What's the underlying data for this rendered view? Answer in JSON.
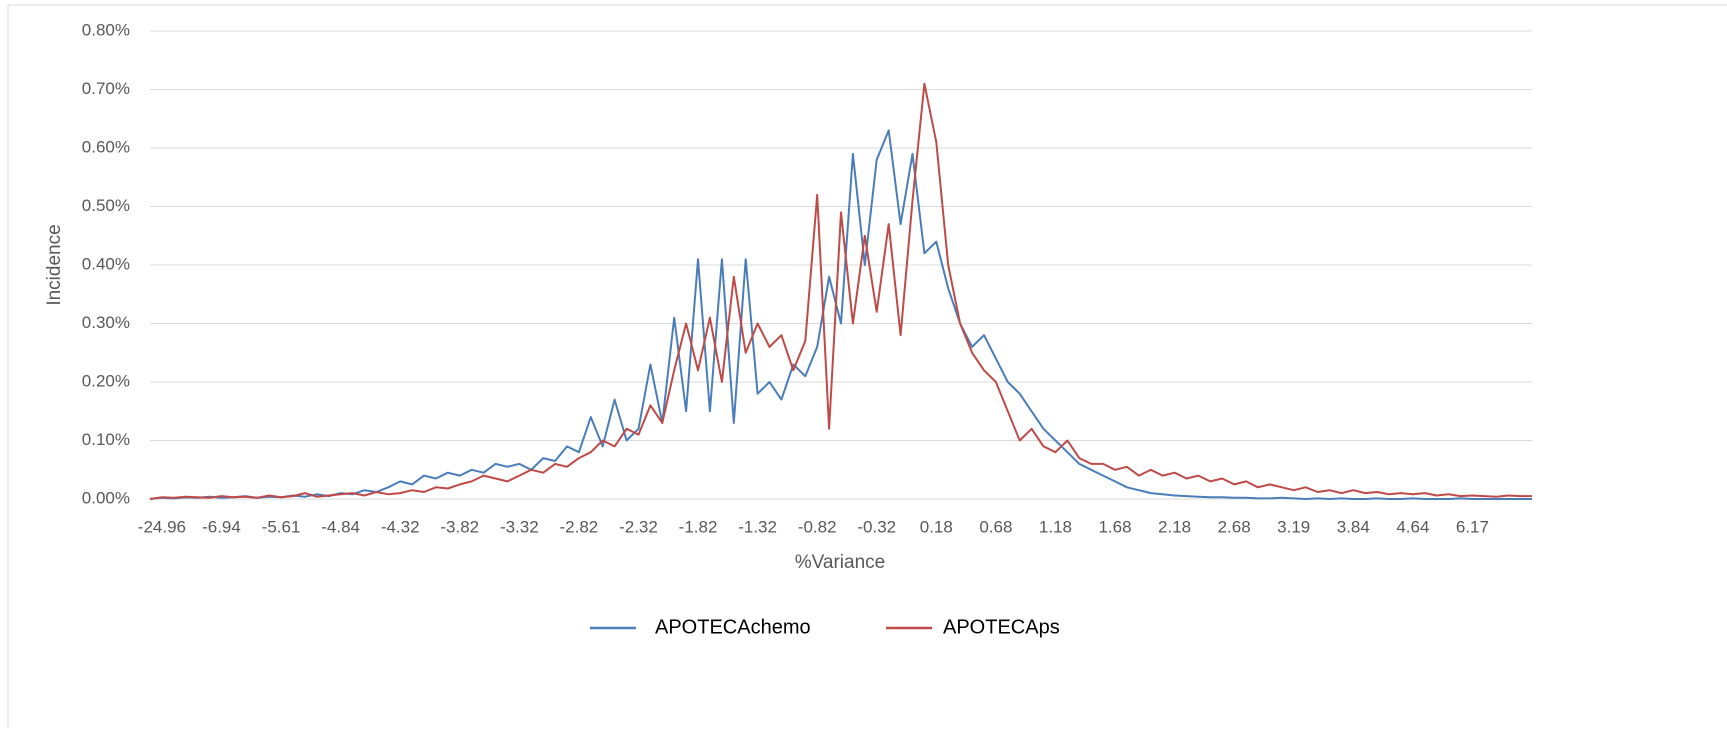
{
  "chart_data": {
    "type": "line",
    "y_axis_label": "Incidence",
    "x_axis_label": "%Variance",
    "categories": [
      null,
      "-24.96",
      null,
      null,
      null,
      null,
      "-6.94",
      null,
      null,
      null,
      null,
      "-5.61",
      null,
      null,
      null,
      null,
      "-4.84",
      null,
      null,
      null,
      null,
      "-4.32",
      null,
      null,
      null,
      null,
      "-3.82",
      null,
      null,
      null,
      null,
      "-3.32",
      null,
      null,
      null,
      null,
      "-2.82",
      null,
      null,
      null,
      null,
      "-2.32",
      null,
      null,
      null,
      null,
      "-1.82",
      null,
      null,
      null,
      null,
      "-1.32",
      null,
      null,
      null,
      null,
      "-0.82",
      null,
      null,
      null,
      null,
      "-0.32",
      null,
      null,
      null,
      null,
      "0.18",
      null,
      null,
      null,
      null,
      "0.68",
      null,
      null,
      null,
      null,
      "1.18",
      null,
      null,
      null,
      null,
      "1.68",
      null,
      null,
      null,
      null,
      "2.18",
      null,
      null,
      null,
      null,
      "2.68",
      null,
      null,
      null,
      null,
      "3.19",
      null,
      null,
      null,
      null,
      "3.84",
      null,
      null,
      null,
      null,
      "4.64",
      null,
      null,
      null,
      null,
      "6.17",
      null,
      null,
      null,
      null,
      null
    ],
    "series": [
      {
        "name": "APOTECAchemo",
        "color": "#4a7ebb",
        "values": [
          0,
          0.002,
          0.001,
          0.003,
          0.002,
          0.004,
          0.002,
          0.003,
          0.005,
          0.002,
          0.004,
          0.003,
          0.006,
          0.004,
          0.008,
          0.005,
          0.01,
          0.008,
          0.015,
          0.012,
          0.02,
          0.03,
          0.025,
          0.04,
          0.035,
          0.045,
          0.04,
          0.05,
          0.045,
          0.06,
          0.055,
          0.06,
          0.05,
          0.07,
          0.065,
          0.09,
          0.08,
          0.14,
          0.09,
          0.17,
          0.1,
          0.12,
          0.23,
          0.13,
          0.31,
          0.15,
          0.41,
          0.15,
          0.41,
          0.13,
          0.41,
          0.18,
          0.2,
          0.17,
          0.23,
          0.21,
          0.26,
          0.38,
          0.3,
          0.59,
          0.4,
          0.58,
          0.63,
          0.47,
          0.59,
          0.42,
          0.44,
          0.36,
          0.3,
          0.26,
          0.28,
          0.24,
          0.2,
          0.18,
          0.15,
          0.12,
          0.1,
          0.08,
          0.06,
          0.05,
          0.04,
          0.03,
          0.02,
          0.015,
          0.01,
          0.008,
          0.006,
          0.005,
          0.004,
          0.003,
          0.003,
          0.002,
          0.002,
          0.001,
          0.001,
          0.002,
          0.001,
          0,
          0.001,
          0,
          0.001,
          0,
          0,
          0.001,
          0,
          0,
          0.001,
          0,
          0,
          0,
          0.001,
          0,
          0,
          0,
          0,
          0,
          0
        ]
      },
      {
        "name": "APOTECAps",
        "color": "#be4b48",
        "values": [
          0,
          0.003,
          0.002,
          0.004,
          0.003,
          0.002,
          0.005,
          0.003,
          0.004,
          0.002,
          0.006,
          0.003,
          0.005,
          0.01,
          0.004,
          0.006,
          0.008,
          0.01,
          0.006,
          0.012,
          0.008,
          0.01,
          0.015,
          0.012,
          0.02,
          0.018,
          0.025,
          0.03,
          0.04,
          0.035,
          0.03,
          0.04,
          0.05,
          0.045,
          0.06,
          0.055,
          0.07,
          0.08,
          0.1,
          0.09,
          0.12,
          0.11,
          0.16,
          0.13,
          0.22,
          0.3,
          0.22,
          0.31,
          0.2,
          0.38,
          0.25,
          0.3,
          0.26,
          0.28,
          0.22,
          0.27,
          0.52,
          0.12,
          0.49,
          0.3,
          0.45,
          0.32,
          0.47,
          0.28,
          0.51,
          0.71,
          0.61,
          0.4,
          0.3,
          0.25,
          0.22,
          0.2,
          0.15,
          0.1,
          0.12,
          0.09,
          0.08,
          0.1,
          0.07,
          0.06,
          0.06,
          0.05,
          0.055,
          0.04,
          0.05,
          0.04,
          0.045,
          0.035,
          0.04,
          0.03,
          0.035,
          0.025,
          0.03,
          0.02,
          0.025,
          0.02,
          0.015,
          0.02,
          0.012,
          0.015,
          0.01,
          0.015,
          0.01,
          0.012,
          0.008,
          0.01,
          0.008,
          0.01,
          0.006,
          0.008,
          0.005,
          0.006,
          0.005,
          0.004,
          0.006,
          0.005,
          0.005
        ]
      }
    ],
    "ylim": [
      0,
      0.8
    ],
    "yticks": [
      {
        "value": 0,
        "label": "0.00%"
      },
      {
        "value": 0.1,
        "label": "0.10%"
      },
      {
        "value": 0.2,
        "label": "0.20%"
      },
      {
        "value": 0.3,
        "label": "0.30%"
      },
      {
        "value": 0.4,
        "label": "0.40%"
      },
      {
        "value": 0.5,
        "label": "0.50%"
      },
      {
        "value": 0.6,
        "label": "0.60%"
      },
      {
        "value": 0.7,
        "label": "0.70%"
      },
      {
        "value": 0.8,
        "label": "0.80%"
      }
    ],
    "grid": true,
    "legend": "bottom"
  }
}
